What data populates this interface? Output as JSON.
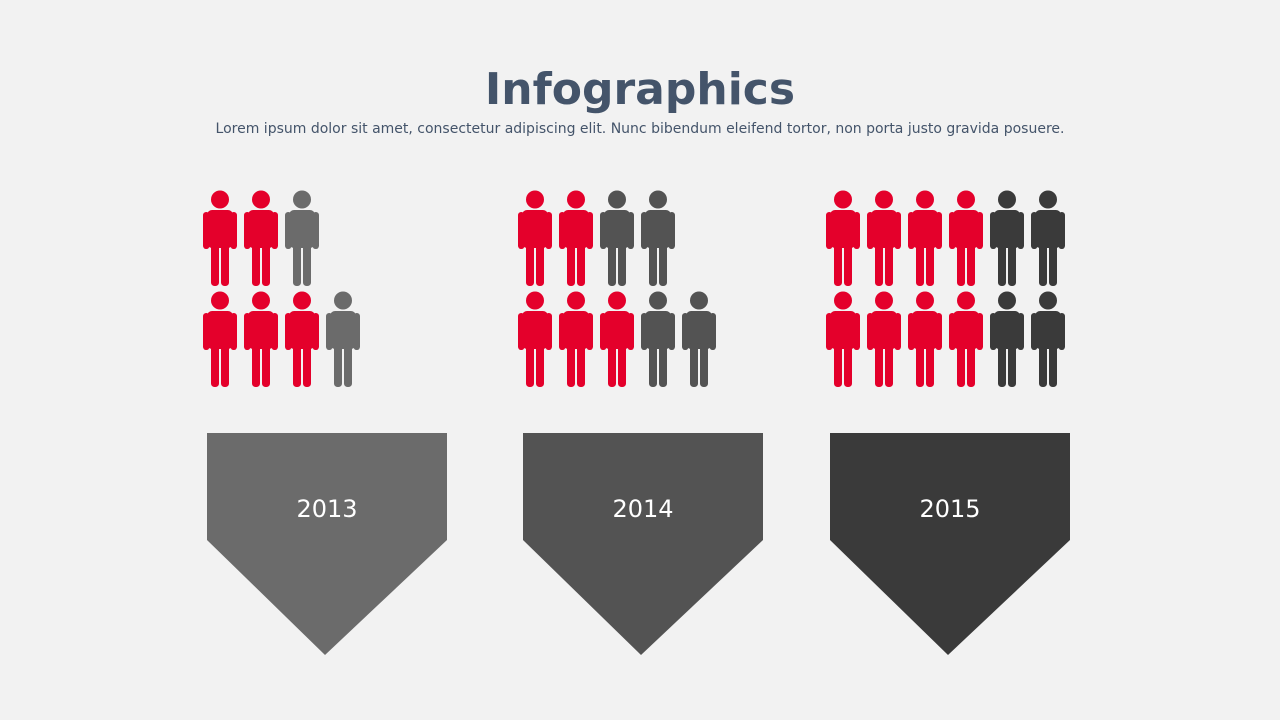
{
  "header": {
    "title": "Infographics",
    "subtitle": "Lorem ipsum dolor sit amet, consectetur adipiscing elit. Nunc bibendum eleifend tortor, non porta justo gravida posuere."
  },
  "colors": {
    "accent": "#e4002b",
    "gray_2013": "#6b6b6b",
    "gray_2014": "#535353",
    "gray_2015": "#3a3a3a"
  },
  "groups": [
    {
      "year": "2013",
      "banner_color": "#6b6b6b",
      "rows": [
        [
          "red",
          "red",
          "gray"
        ],
        [
          "red",
          "red",
          "red",
          "gray"
        ]
      ]
    },
    {
      "year": "2014",
      "banner_color": "#535353",
      "rows": [
        [
          "red",
          "red",
          "gray",
          "gray"
        ],
        [
          "red",
          "red",
          "red",
          "gray",
          "gray"
        ]
      ]
    },
    {
      "year": "2015",
      "banner_color": "#3a3a3a",
      "rows": [
        [
          "red",
          "red",
          "red",
          "red",
          "gray",
          "gray"
        ],
        [
          "red",
          "red",
          "red",
          "red",
          "gray",
          "gray"
        ]
      ]
    }
  ]
}
